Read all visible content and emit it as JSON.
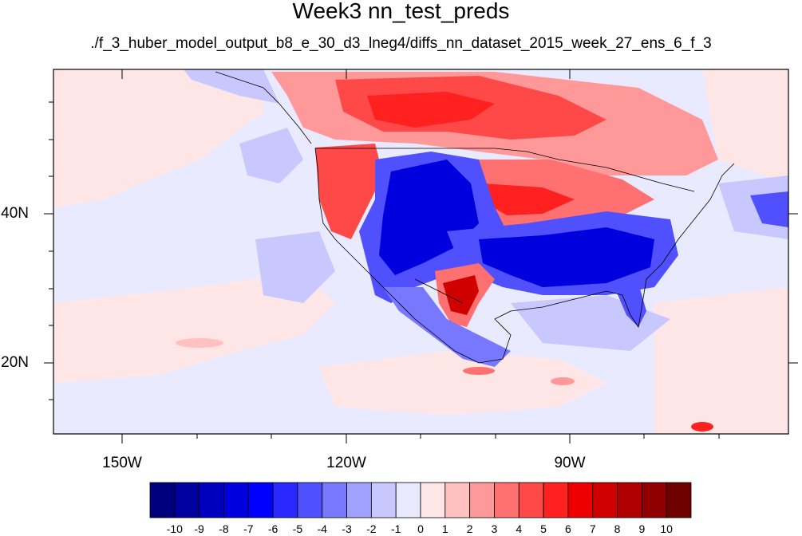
{
  "title": "Week3 nn_test_preds",
  "subtitle": "./f_3_huber_model_output_b8_e_30_d3_lneg4/diffs_nn_dataset_2015_week_27_ens_6_f_3",
  "lon_labels": [
    "150W",
    "120W",
    "90W"
  ],
  "lat_labels": [
    "40N",
    "20N"
  ],
  "colorbar": {
    "levels": [
      "-10",
      "-9",
      "-8",
      "-7",
      "-6",
      "-5",
      "-4",
      "-3",
      "-2",
      "-1",
      "0",
      "1",
      "2",
      "3",
      "4",
      "5",
      "6",
      "7",
      "8",
      "9",
      "10"
    ],
    "colors": [
      "#00007f",
      "#00009f",
      "#0000bf",
      "#0000df",
      "#0000ff",
      "#2828ff",
      "#5050ff",
      "#7878ff",
      "#a0a0ff",
      "#c8c8ff",
      "#eaeaff",
      "#ffe6e6",
      "#ffc0c0",
      "#ff9898",
      "#ff7070",
      "#ff4848",
      "#ff2020",
      "#ef0000",
      "#d00000",
      "#b00000",
      "#900000",
      "#700000"
    ]
  },
  "map_colors": {
    "ocean_base": "#eaeaff",
    "pos_light": "#ffe6e6",
    "neg_light": "#c8c8ff",
    "neg_strong": "#0000df",
    "pos_strong": "#ff2020"
  }
}
